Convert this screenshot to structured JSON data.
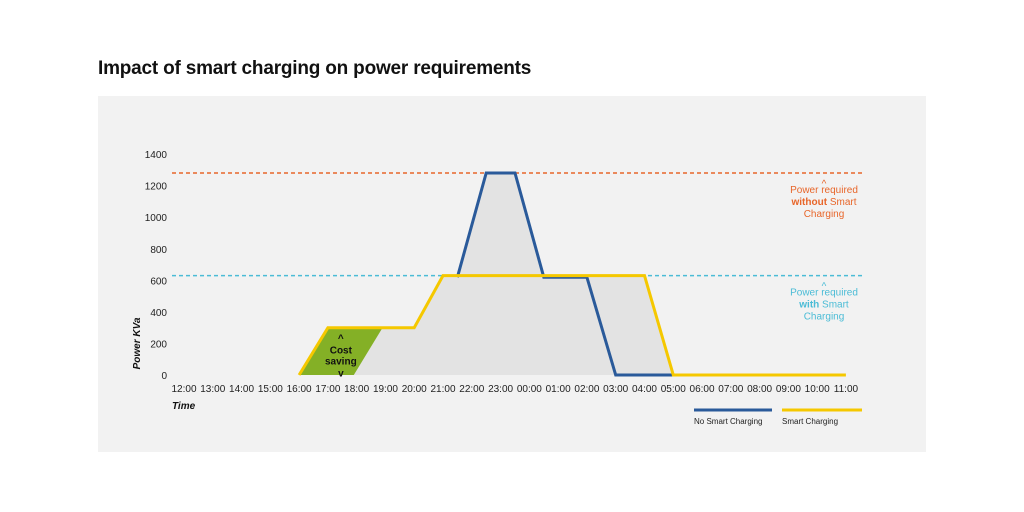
{
  "title": "Impact of smart charging on power requirements",
  "chart_data": {
    "type": "line",
    "title": "Impact of smart charging on power requirements",
    "xlabel": "Time",
    "ylabel": "Power KVa",
    "ylim": [
      0,
      1400
    ],
    "yticks": [
      0,
      200,
      400,
      600,
      800,
      1000,
      1200,
      1400
    ],
    "categories": [
      "12:00",
      "13:00",
      "14:00",
      "15:00",
      "16:00",
      "17:00",
      "18:00",
      "19:00",
      "20:00",
      "21:00",
      "22:00",
      "23:00",
      "00:00",
      "01:00",
      "02:00",
      "03:00",
      "04:00",
      "05:00",
      "06:00",
      "07:00",
      "08:00",
      "09:00",
      "10:00",
      "11:00"
    ],
    "grid": false,
    "legend_position": "bottom-right",
    "series": [
      {
        "name": "No Smart Charging",
        "color": "#2a5a9a",
        "points": [
          [
            9.5,
            620
          ],
          [
            10.5,
            1280
          ],
          [
            11.5,
            1280
          ],
          [
            12.5,
            620
          ],
          [
            14.0,
            620
          ],
          [
            15.0,
            0
          ],
          [
            17.0,
            0
          ]
        ]
      },
      {
        "name": "Smart Charging",
        "color": "#f5c800",
        "points": [
          [
            4.0,
            0
          ],
          [
            5.0,
            300
          ],
          [
            8.0,
            300
          ],
          [
            9.0,
            630
          ],
          [
            16.0,
            630
          ],
          [
            17.0,
            0
          ],
          [
            23.0,
            0
          ]
        ]
      }
    ],
    "reference_lines": [
      {
        "value": 1280,
        "color": "#e8662a",
        "label_prefix": "Power required",
        "label_bold": "without",
        "label_suffix": "Smart",
        "label_line3": "Charging"
      },
      {
        "value": 630,
        "color": "#4bbcd6",
        "label_prefix": "Power required",
        "label_bold": "with",
        "label_suffix": "Smart",
        "label_line3": "Charging"
      }
    ],
    "annotations": [
      {
        "text_line1": "Cost",
        "text_line2": "saving",
        "arrow_up": "^",
        "arrow_down": "v",
        "fill": "#84b026"
      }
    ],
    "ref_arrow": "^"
  }
}
